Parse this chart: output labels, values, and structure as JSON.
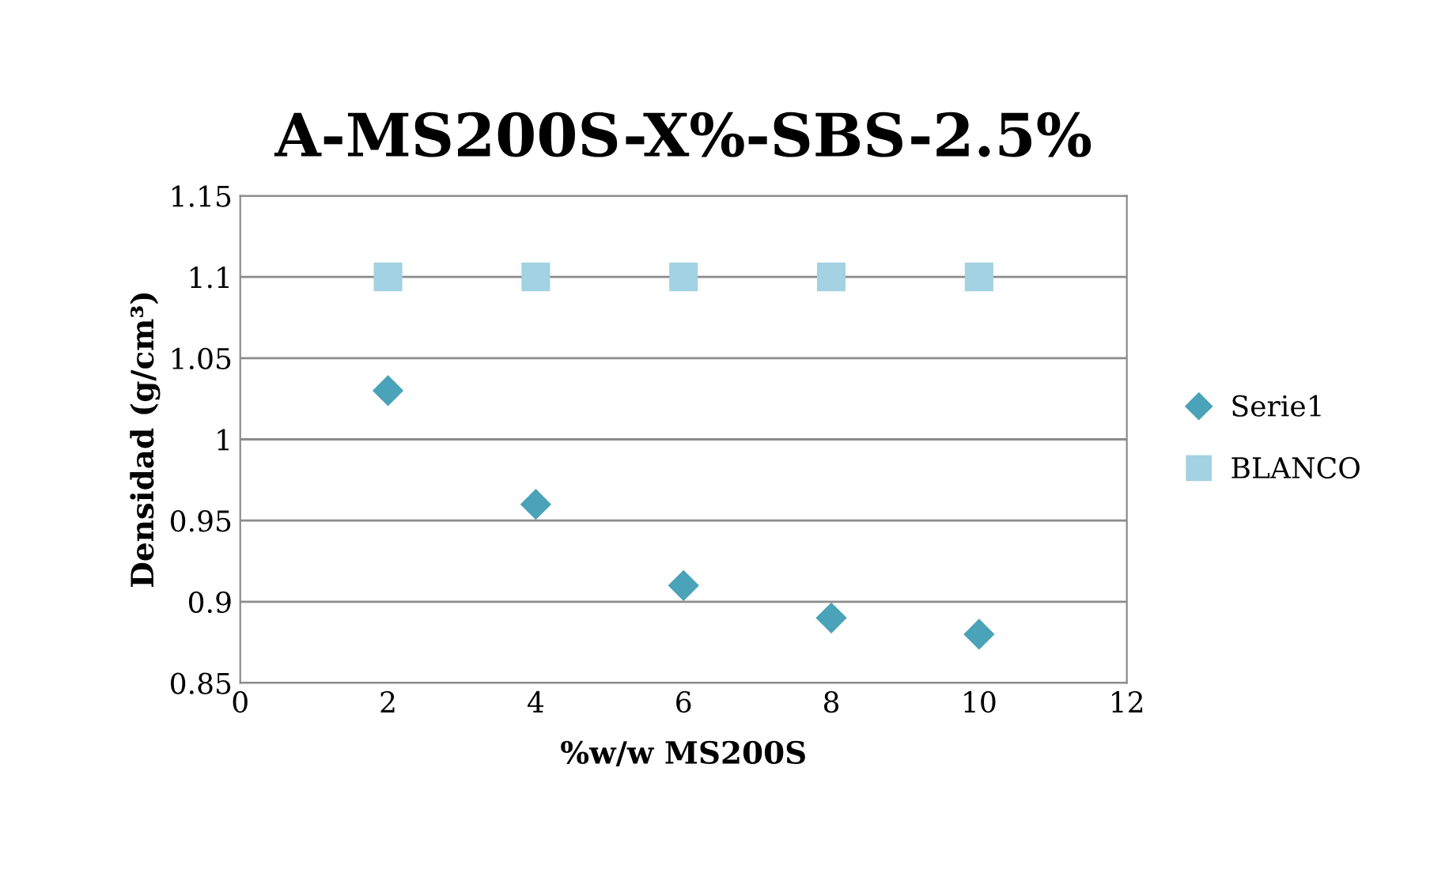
{
  "chart_data": {
    "type": "scatter",
    "title": "A-MS200S-X%-SBS-2.5%",
    "xlabel": "%w/w MS200S",
    "ylabel": "Densidad (g/cm³)",
    "x": [
      2,
      4,
      6,
      8,
      10
    ],
    "series": [
      {
        "name": "Serie1",
        "color": "#4aa3b8",
        "marker": "diamond",
        "values": [
          1.03,
          0.96,
          0.91,
          0.89,
          0.88
        ]
      },
      {
        "name": "BLANCO",
        "color": "#a3d2e2",
        "marker": "square",
        "values": [
          1.1,
          1.1,
          1.1,
          1.1,
          1.1
        ]
      }
    ],
    "xlim": [
      0,
      12
    ],
    "xticks": [
      0,
      2,
      4,
      6,
      8,
      10,
      12
    ],
    "ylim": [
      0.85,
      1.15
    ],
    "yticks": [
      0.85,
      0.9,
      0.95,
      1,
      1.05,
      1.1,
      1.15
    ],
    "grid": "y",
    "legend": "right"
  }
}
